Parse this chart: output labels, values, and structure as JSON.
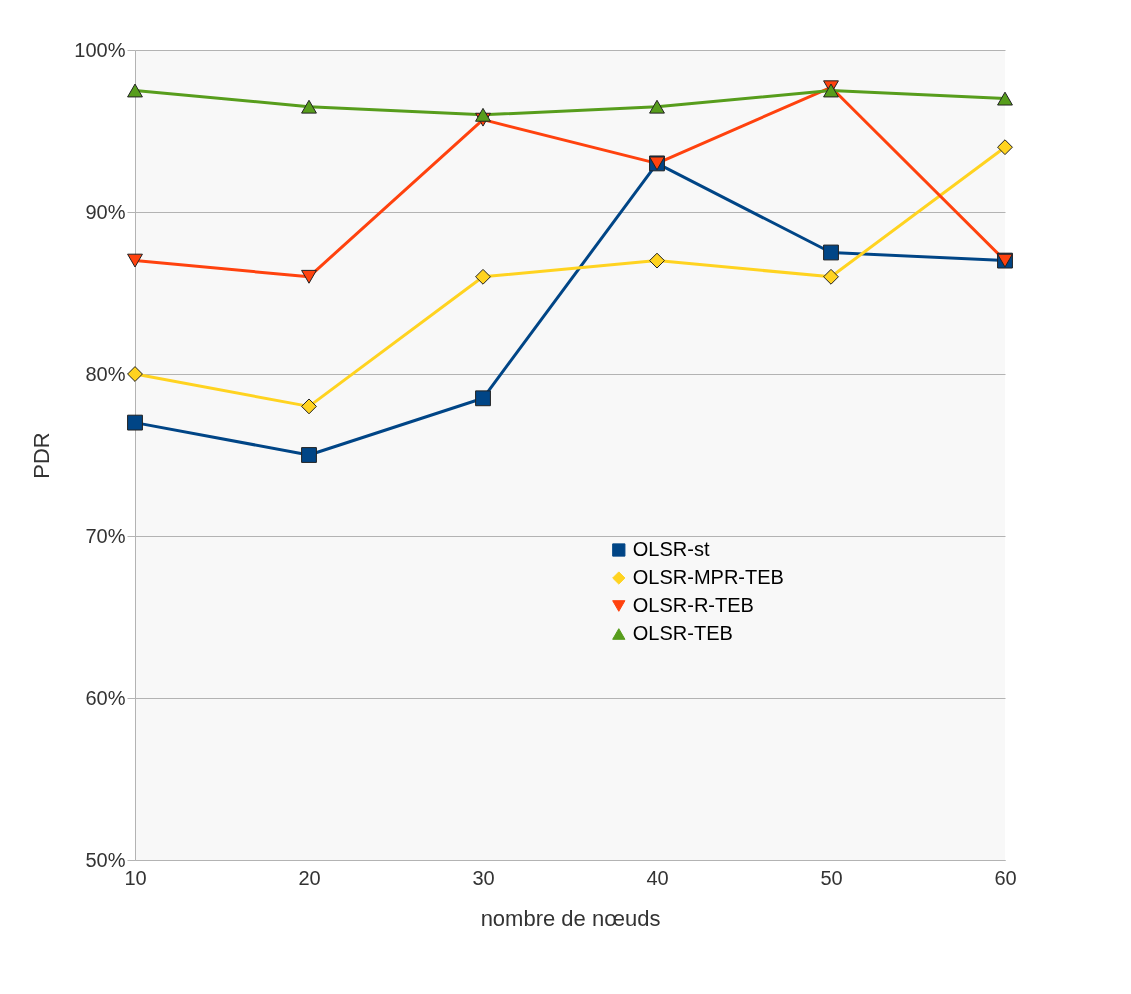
{
  "chart_data": {
    "type": "line",
    "xlabel": "nombre de nœuds",
    "ylabel": "PDR",
    "x": [
      10,
      20,
      30,
      40,
      50,
      60
    ],
    "series": [
      {
        "name": "OLSR-st",
        "color": "#004586",
        "marker": "square",
        "values": [
          77,
          75,
          78.5,
          93,
          87.5,
          87
        ]
      },
      {
        "name": "OLSR-MPR-TEB",
        "color": "#ffd320",
        "marker": "diamond",
        "values": [
          80,
          78,
          86,
          87,
          86,
          94
        ]
      },
      {
        "name": "OLSR-R-TEB",
        "color": "#ff420e",
        "marker": "triangle-down",
        "values": [
          87,
          86,
          95.7,
          93,
          97.7,
          87
        ]
      },
      {
        "name": "OLSR-TEB",
        "color": "#579d1c",
        "marker": "triangle",
        "values": [
          97.5,
          96.5,
          96,
          96.5,
          97.5,
          97
        ]
      }
    ],
    "xlim": [
      10,
      60
    ],
    "xticks": [
      10,
      20,
      30,
      40,
      50,
      60
    ],
    "ylim": [
      50,
      100
    ],
    "yticks": [
      {
        "value": 50,
        "label": "50%"
      },
      {
        "value": 60,
        "label": "60%"
      },
      {
        "value": 70,
        "label": "70%"
      },
      {
        "value": 80,
        "label": "80%"
      },
      {
        "value": 90,
        "label": "90%"
      },
      {
        "value": 100,
        "label": "100%"
      }
    ],
    "grid": "y",
    "legend": "center",
    "line_style": "solid"
  }
}
